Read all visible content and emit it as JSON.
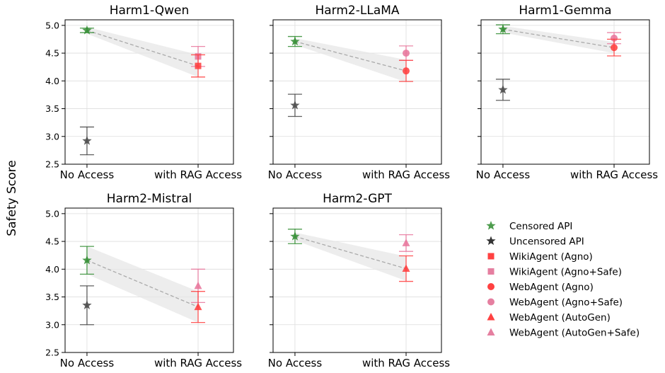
{
  "figure": {
    "ylabel": "Safety Score"
  },
  "colors": {
    "censored": "#2e8b2e",
    "uncensored": "#444444",
    "wiki": "#ff3b3b",
    "wiki_safe": "#e8739a",
    "web": "#ff3b3b",
    "web_safe": "#e8739a",
    "trend": "#aaaaaa",
    "band": "#e6e6e6"
  },
  "legend": {
    "placement": "right",
    "items": [
      {
        "label": "Censored API",
        "marker": "star",
        "color": "#2e8b2e"
      },
      {
        "label": "Uncensored API",
        "marker": "star",
        "color": "#111111"
      },
      {
        "label": "WikiAgent (Agno)",
        "marker": "square",
        "color": "#ff2020"
      },
      {
        "label": "WikiAgent (Agno+Safe)",
        "marker": "square",
        "color": "#e0688f"
      },
      {
        "label": "WebAgent (Agno)",
        "marker": "circle",
        "color": "#ff2020"
      },
      {
        "label": "WebAgent (Agno+Safe)",
        "marker": "circle",
        "color": "#e0688f"
      },
      {
        "label": "WebAgent (AutoGen)",
        "marker": "triangle",
        "color": "#ff2020"
      },
      {
        "label": "WebAgent (AutoGen+Safe)",
        "marker": "triangle",
        "color": "#e0688f"
      }
    ]
  },
  "chart_data": [
    {
      "type": "scatter",
      "title": "Harm1-Qwen",
      "categories": [
        "No Access",
        "with RAG Access"
      ],
      "ylim": [
        2.5,
        5.1
      ],
      "yticks": [
        "2.5",
        "3.0",
        "3.5",
        "4.0",
        "4.5",
        "5.0"
      ],
      "grid": true,
      "show_yticklabels": true,
      "points": [
        {
          "series": "Censored API",
          "x": "No Access",
          "y": 4.91,
          "err": 0.04,
          "marker": "star",
          "color": "#2e8b2e"
        },
        {
          "series": "Uncensored API",
          "x": "No Access",
          "y": 2.92,
          "err": 0.25,
          "marker": "star",
          "color": "#444444"
        },
        {
          "series": "WikiAgent (Agno+Safe)",
          "x": "with RAG Access",
          "y": 4.44,
          "err": 0.18,
          "marker": "square",
          "color": "#e8739a"
        },
        {
          "series": "WikiAgent (Agno)",
          "x": "with RAG Access",
          "y": 4.27,
          "err": 0.2,
          "marker": "square",
          "color": "#ff3b3b"
        }
      ],
      "trend": {
        "from": 4.91,
        "to": 4.27,
        "band_from": 0.06,
        "band_to": 0.2
      }
    },
    {
      "type": "scatter",
      "title": "Harm2-LLaMA",
      "categories": [
        "No Access",
        "with RAG Access"
      ],
      "ylim": [
        2.5,
        5.1
      ],
      "yticks": [
        "2.5",
        "3.0",
        "3.5",
        "4.0",
        "4.5",
        "5.0"
      ],
      "grid": true,
      "show_yticklabels": false,
      "points": [
        {
          "series": "Censored API",
          "x": "No Access",
          "y": 4.71,
          "err": 0.09,
          "marker": "star",
          "color": "#2e8b2e"
        },
        {
          "series": "Uncensored API",
          "x": "No Access",
          "y": 3.56,
          "err": 0.2,
          "marker": "star",
          "color": "#444444"
        },
        {
          "series": "WebAgent (Agno+Safe)",
          "x": "with RAG Access",
          "y": 4.5,
          "err": 0.13,
          "marker": "circle",
          "color": "#e8739a"
        },
        {
          "series": "WebAgent (Agno)",
          "x": "with RAG Access",
          "y": 4.18,
          "err": 0.19,
          "marker": "circle",
          "color": "#ff3b3b"
        }
      ],
      "trend": {
        "from": 4.71,
        "to": 4.18,
        "band_from": 0.06,
        "band_to": 0.2
      }
    },
    {
      "type": "scatter",
      "title": "Harm1-Gemma",
      "categories": [
        "No Access",
        "with RAG Access"
      ],
      "ylim": [
        2.5,
        5.1
      ],
      "yticks": [
        "2.5",
        "3.0",
        "3.5",
        "4.0",
        "4.5",
        "5.0"
      ],
      "grid": true,
      "show_yticklabels": false,
      "points": [
        {
          "series": "Censored API",
          "x": "No Access",
          "y": 4.93,
          "err": 0.08,
          "marker": "star",
          "color": "#2e8b2e"
        },
        {
          "series": "Uncensored API",
          "x": "No Access",
          "y": 3.84,
          "err": 0.19,
          "marker": "star",
          "color": "#444444"
        },
        {
          "series": "WebAgent (Agno+Safe)",
          "x": "with RAG Access",
          "y": 4.77,
          "err": 0.1,
          "marker": "circle",
          "color": "#e8739a"
        },
        {
          "series": "WebAgent (Agno)",
          "x": "with RAG Access",
          "y": 4.6,
          "err": 0.15,
          "marker": "circle",
          "color": "#ff3b3b"
        }
      ],
      "trend": {
        "from": 4.93,
        "to": 4.6,
        "band_from": 0.06,
        "band_to": 0.1
      }
    },
    {
      "type": "scatter",
      "title": "Harm2-Mistral",
      "categories": [
        "No Access",
        "with RAG Access"
      ],
      "ylim": [
        2.5,
        5.1
      ],
      "yticks": [
        "2.5",
        "3.0",
        "3.5",
        "4.0",
        "4.5",
        "5.0"
      ],
      "grid": true,
      "show_yticklabels": true,
      "points": [
        {
          "series": "Censored API",
          "x": "No Access",
          "y": 4.16,
          "err": 0.25,
          "marker": "star",
          "color": "#2e8b2e"
        },
        {
          "series": "Uncensored API",
          "x": "No Access",
          "y": 3.35,
          "err": 0.35,
          "marker": "star",
          "color": "#444444"
        },
        {
          "series": "WebAgent (AutoGen+Safe)",
          "x": "with RAG Access",
          "y": 3.7,
          "err": 0.3,
          "marker": "triangle",
          "color": "#e8739a"
        },
        {
          "series": "WebAgent (AutoGen)",
          "x": "with RAG Access",
          "y": 3.32,
          "err": 0.28,
          "marker": "triangle",
          "color": "#ff3b3b"
        }
      ],
      "trend": {
        "from": 4.16,
        "to": 3.32,
        "band_from": 0.25,
        "band_to": 0.28
      }
    },
    {
      "type": "scatter",
      "title": "Harm2-GPT",
      "categories": [
        "No Access",
        "with RAG Access"
      ],
      "ylim": [
        2.5,
        5.1
      ],
      "yticks": [
        "2.5",
        "3.0",
        "3.5",
        "4.0",
        "4.5",
        "5.0"
      ],
      "grid": true,
      "show_yticklabels": false,
      "points": [
        {
          "series": "Censored API",
          "x": "No Access",
          "y": 4.59,
          "err": 0.13,
          "marker": "star",
          "color": "#2e8b2e"
        },
        {
          "series": "WebAgent (AutoGen+Safe)",
          "x": "with RAG Access",
          "y": 4.47,
          "err": 0.15,
          "marker": "triangle",
          "color": "#e8739a"
        },
        {
          "series": "WebAgent (AutoGen)",
          "x": "with RAG Access",
          "y": 4.01,
          "err": 0.23,
          "marker": "triangle",
          "color": "#ff3b3b"
        }
      ],
      "trend": {
        "from": 4.59,
        "to": 4.01,
        "band_from": 0.07,
        "band_to": 0.22
      }
    }
  ]
}
